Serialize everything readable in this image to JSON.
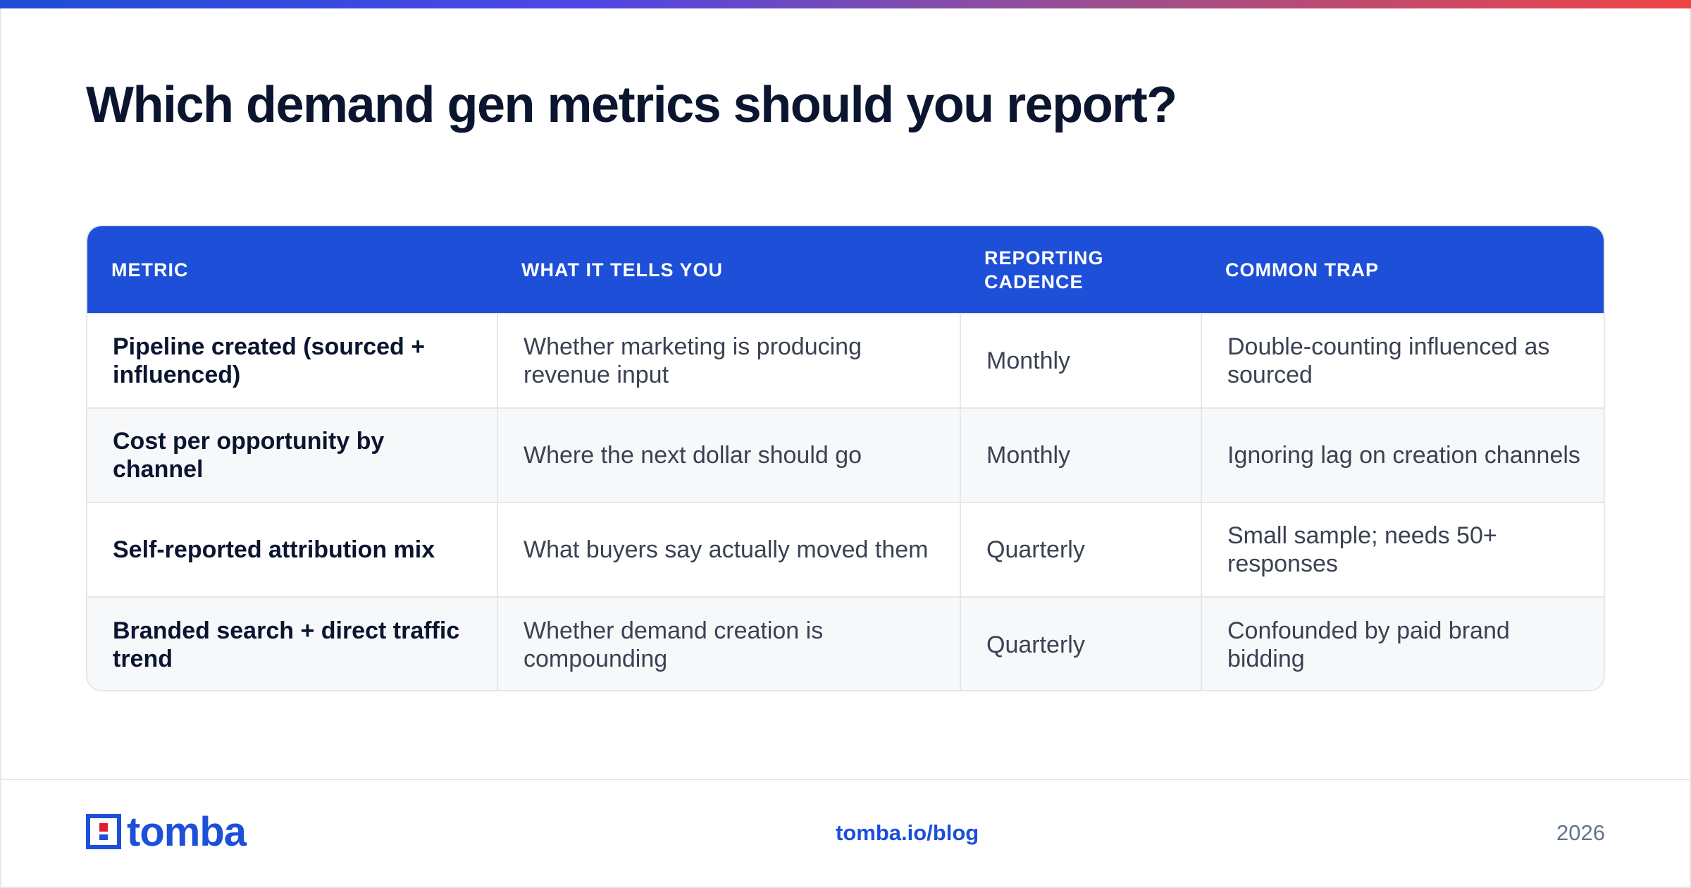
{
  "title": "Which demand gen metrics should you report?",
  "table": {
    "headers": [
      "METRIC",
      "WHAT IT TELLS YOU",
      "REPORTING CADENCE",
      "COMMON TRAP"
    ],
    "rows": [
      [
        "Pipeline created (sourced + influenced)",
        "Whether marketing is producing revenue input",
        "Monthly",
        "Double-counting influenced as sourced"
      ],
      [
        "Cost per opportunity by channel",
        "Where the next dollar should go",
        "Monthly",
        "Ignoring lag on creation channels"
      ],
      [
        "Self-reported attribution mix",
        "What buyers say actually moved them",
        "Quarterly",
        "Small sample; needs 50+ responses"
      ],
      [
        "Branded search + direct traffic trend",
        "Whether demand creation is compounding",
        "Quarterly",
        "Confounded by paid brand bidding"
      ]
    ]
  },
  "footer": {
    "logo_text": "tomba",
    "link": "tomba.io/blog",
    "year": "2026"
  },
  "colors": {
    "accent": "#1d4fd8",
    "logo_red": "#e11d2e",
    "gradient_start": "#1d4ed8",
    "gradient_end": "#ef4444"
  }
}
